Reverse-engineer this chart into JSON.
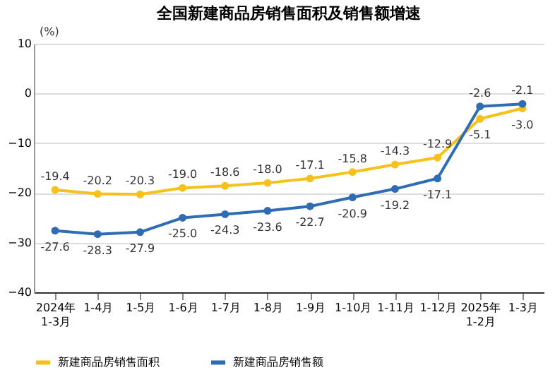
{
  "chart_data": {
    "type": "line",
    "title": "全国新建商品房销售面积及销售额增速",
    "ylabel": "(%)",
    "categories": [
      "2024年\n1-3月",
      "1-4月",
      "1-5月",
      "1-6月",
      "1-7月",
      "1-8月",
      "1-9月",
      "1-10月",
      "1-11月",
      "1-12月",
      "2025年\n1-2月",
      "1-3月"
    ],
    "series": [
      {
        "name": "新建商品房销售面积",
        "color": "#f5c11a",
        "values": [
          -19.4,
          -20.2,
          -20.3,
          -19.0,
          -18.6,
          -18.0,
          -17.1,
          -15.8,
          -14.3,
          -12.9,
          -5.1,
          -3.0
        ],
        "value_labels": [
          "-19.4",
          "-20.2",
          "-20.3",
          "-19.0",
          "-18.6",
          "-18.0",
          "-17.1",
          "-15.8",
          "-14.3",
          "-12.9",
          "-5.1",
          "-3.0"
        ]
      },
      {
        "name": "新建商品房销售额",
        "color": "#2e6db4",
        "values": [
          -27.6,
          -28.3,
          -27.9,
          -25.0,
          -24.3,
          -23.6,
          -22.7,
          -20.9,
          -19.2,
          -17.1,
          -2.6,
          -2.1
        ],
        "value_labels": [
          "-27.6",
          "-28.3",
          "-27.9",
          "-25.0",
          "-24.3",
          "-23.6",
          "-22.7",
          "-20.9",
          "-19.2",
          "-17.1",
          "-2.6",
          "-2.1"
        ]
      }
    ],
    "ylim": [
      -40,
      10
    ],
    "yticks": [
      10,
      0,
      -10,
      -20,
      -30,
      -40
    ],
    "grid": "y",
    "legend": "bottom",
    "marker": "circle",
    "line_style": "solid"
  }
}
